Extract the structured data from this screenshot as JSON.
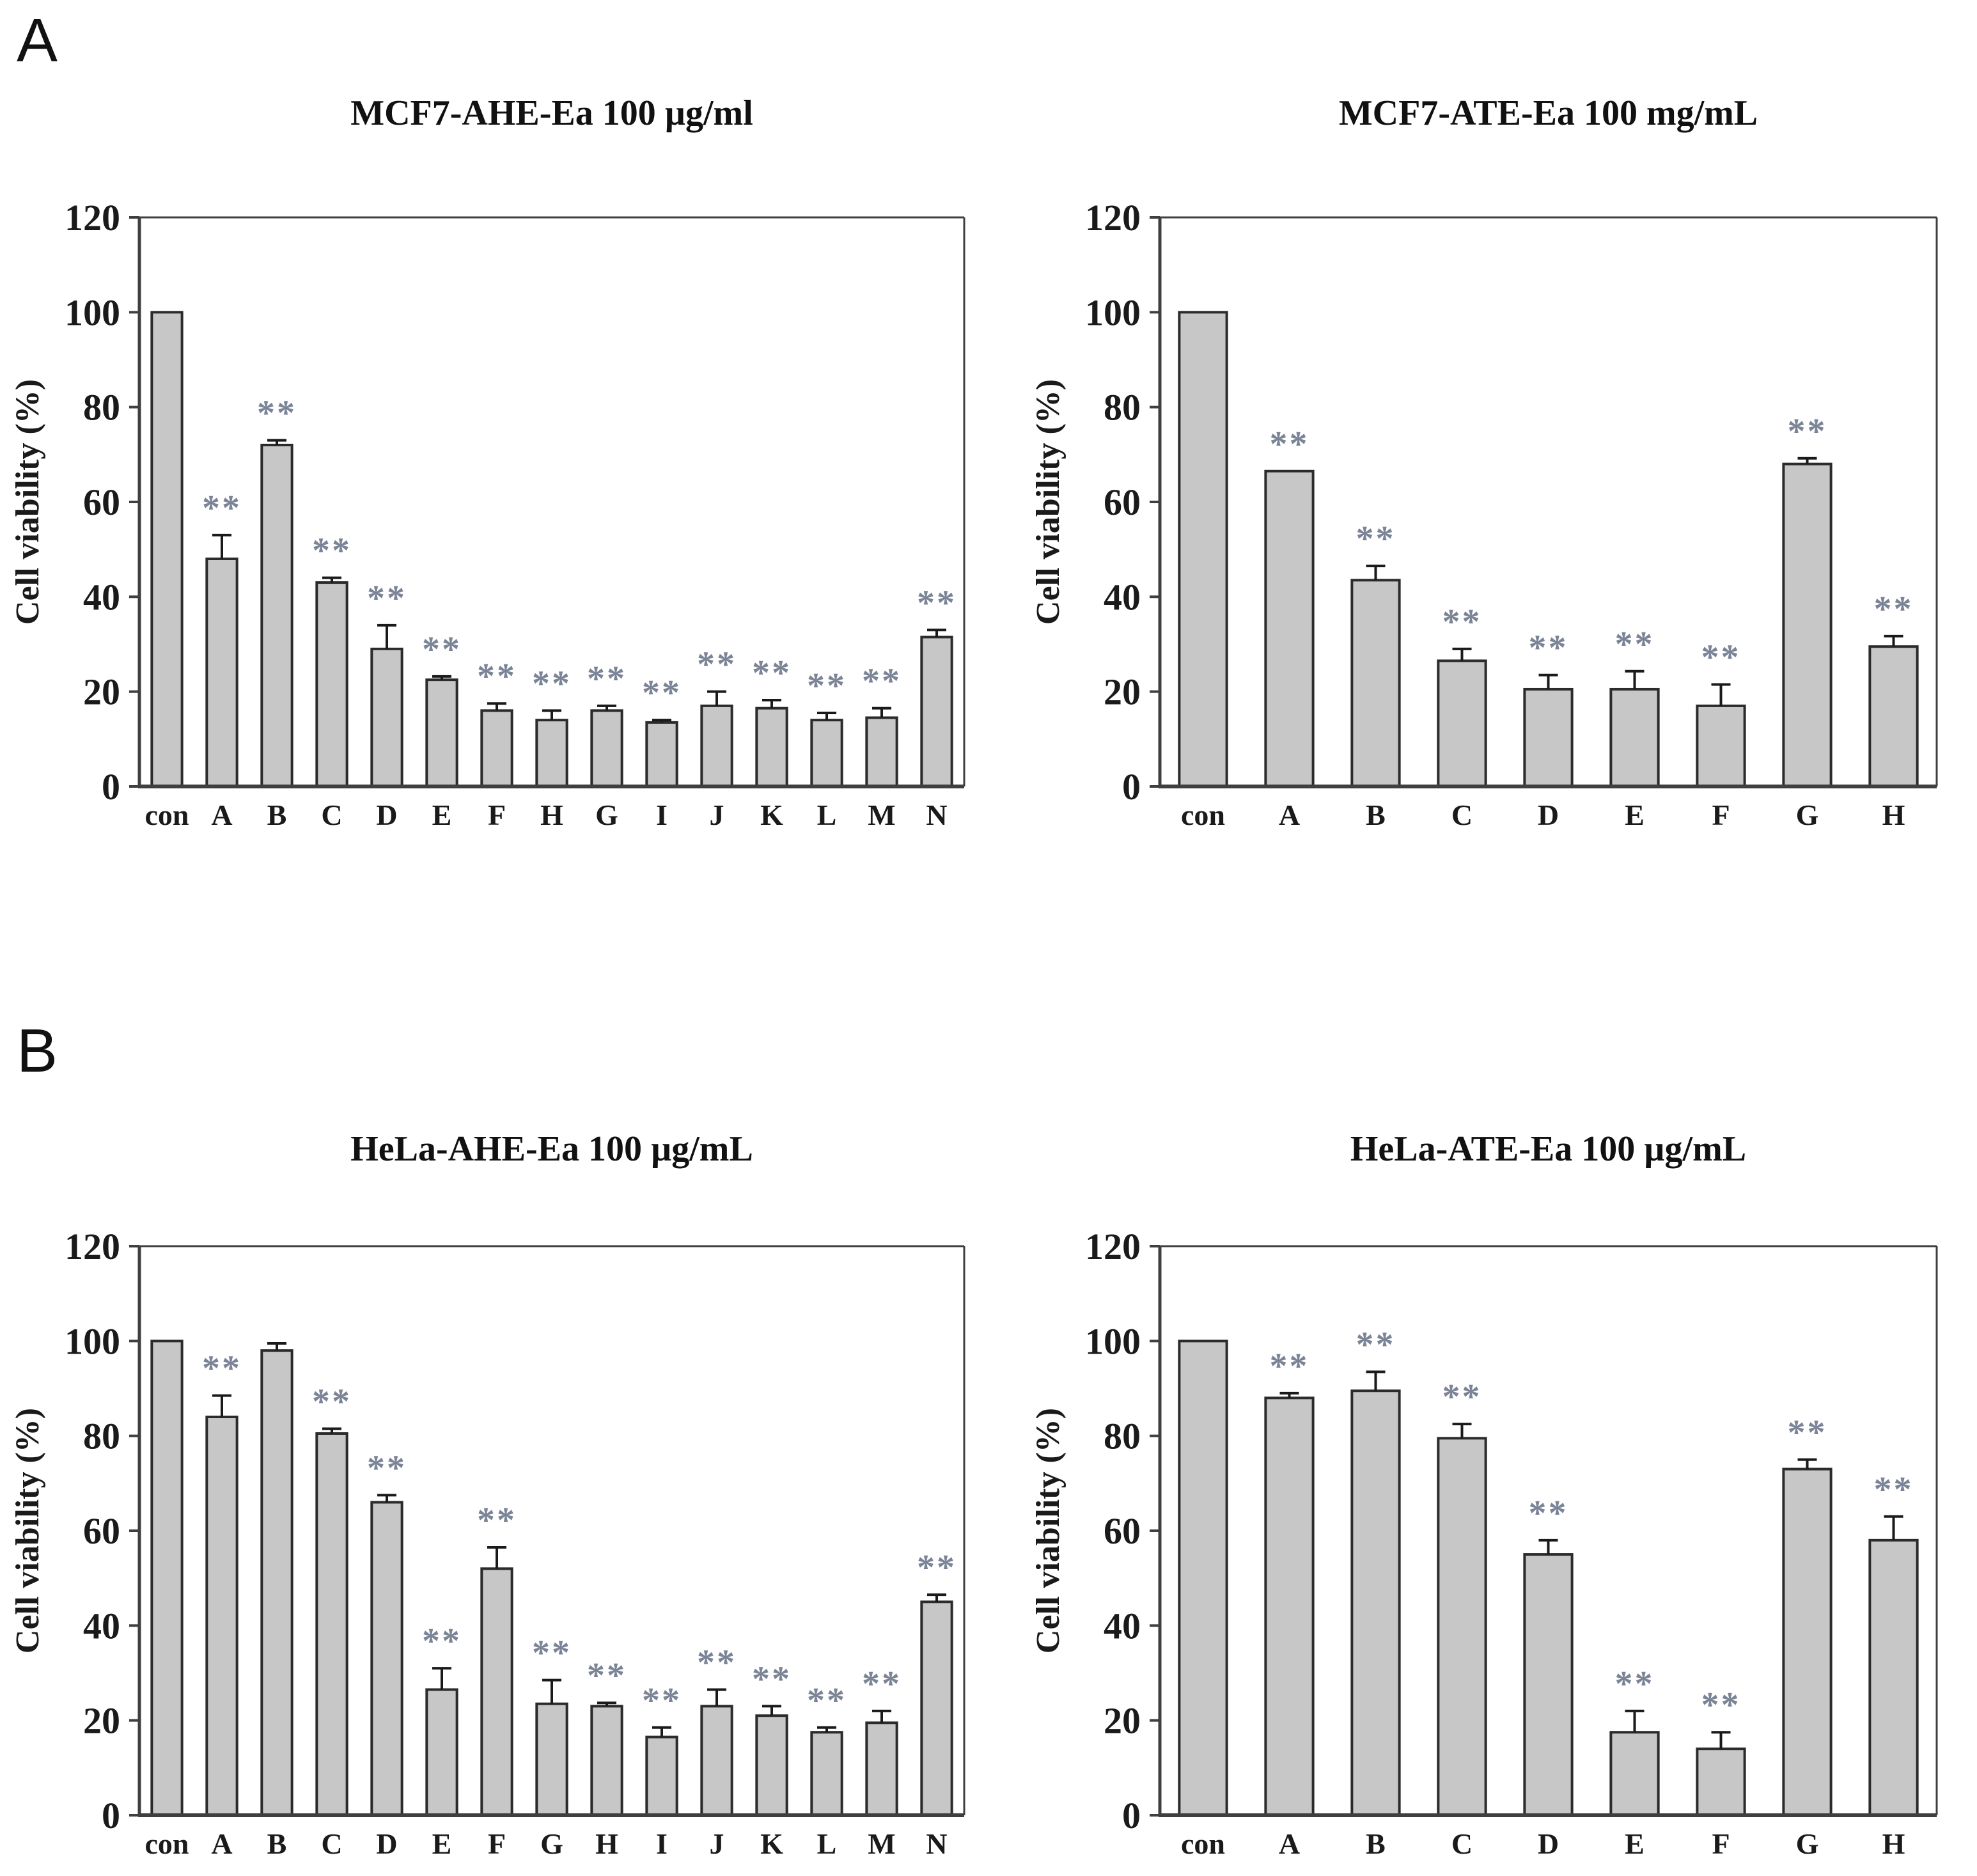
{
  "page": {
    "background": "#ffffff",
    "panels": [
      {
        "label": "A"
      },
      {
        "label": "B"
      }
    ]
  },
  "colors": {
    "bar_fill": "#c7c7c7",
    "bar_stroke": "#2b2b2b",
    "axis": "#3f3f3f",
    "error_bar": "#1a1a1a",
    "sig_marker": "#7b8496",
    "text": "#1a1a1a"
  },
  "chart_data": [
    {
      "id": "mcf7-ahe",
      "panel": "A",
      "type": "bar",
      "title": "MCF7-AHE-Ea 100 µg/ml",
      "xlabel": "",
      "ylabel": "Cell viability (%)",
      "ylim": [
        0,
        120
      ],
      "yticks": [
        0,
        20,
        40,
        60,
        80,
        100,
        120
      ],
      "grid": false,
      "legend": null,
      "sig_marker": "**",
      "categories": [
        "con",
        "A",
        "B",
        "C",
        "D",
        "E",
        "F",
        "H",
        "G",
        "I",
        "J",
        "K",
        "L",
        "M",
        "N"
      ],
      "values": [
        100,
        48,
        72,
        43,
        29,
        22.5,
        16,
        14,
        16,
        13.5,
        17,
        16.5,
        14,
        14.5,
        31.5
      ],
      "errors": [
        0,
        5,
        1,
        1,
        5,
        0.7,
        1.5,
        2,
        1,
        0.5,
        3,
        1.7,
        1.5,
        2,
        1.5
      ],
      "sig": [
        false,
        true,
        true,
        true,
        true,
        true,
        true,
        true,
        true,
        true,
        true,
        true,
        true,
        true,
        true
      ]
    },
    {
      "id": "mcf7-ate",
      "panel": "A",
      "type": "bar",
      "title": "MCF7-ATE-Ea 100 mg/mL",
      "xlabel": "",
      "ylabel": "Cell viability (%)",
      "ylim": [
        0,
        120
      ],
      "yticks": [
        0,
        20,
        40,
        60,
        80,
        100,
        120
      ],
      "grid": false,
      "legend": null,
      "sig_marker": "**",
      "categories": [
        "con",
        "A",
        "B",
        "C",
        "D",
        "E",
        "F",
        "G",
        "H"
      ],
      "values": [
        100,
        66.5,
        43.5,
        26.5,
        20.5,
        20.5,
        17,
        68,
        29.5
      ],
      "errors": [
        0,
        0,
        3,
        2.5,
        3,
        3.8,
        4.5,
        1.2,
        2.2
      ],
      "sig": [
        false,
        true,
        true,
        true,
        true,
        true,
        true,
        true,
        true
      ]
    },
    {
      "id": "hela-ahe",
      "panel": "B",
      "type": "bar",
      "title": "HeLa-AHE-Ea 100 µg/mL",
      "xlabel": "",
      "ylabel": "Cell viability (%)",
      "ylim": [
        0,
        120
      ],
      "yticks": [
        0,
        20,
        40,
        60,
        80,
        100,
        120
      ],
      "grid": false,
      "legend": null,
      "sig_marker": "**",
      "categories": [
        "con",
        "A",
        "B",
        "C",
        "D",
        "E",
        "F",
        "G",
        "H",
        "I",
        "J",
        "K",
        "L",
        "M",
        "N"
      ],
      "values": [
        100,
        84,
        98,
        80.5,
        66,
        26.5,
        52,
        23.5,
        23,
        16.5,
        23,
        21,
        17.5,
        19.5,
        45
      ],
      "errors": [
        0,
        4.5,
        1.5,
        1,
        1.5,
        4.5,
        4.5,
        5,
        0.7,
        2,
        3.5,
        2,
        1,
        2.5,
        1.5
      ],
      "sig": [
        false,
        true,
        false,
        true,
        true,
        true,
        true,
        true,
        true,
        true,
        true,
        true,
        true,
        true,
        true
      ]
    },
    {
      "id": "hela-ate",
      "panel": "B",
      "type": "bar",
      "title": "HeLa-ATE-Ea 100 µg/mL",
      "xlabel": "",
      "ylabel": "Cell viability (%)",
      "ylim": [
        0,
        120
      ],
      "yticks": [
        0,
        20,
        40,
        60,
        80,
        100,
        120
      ],
      "grid": false,
      "legend": null,
      "sig_marker": "**",
      "categories": [
        "con",
        "A",
        "B",
        "C",
        "D",
        "E",
        "F",
        "G",
        "H"
      ],
      "values": [
        100,
        88,
        89.5,
        79.5,
        55,
        17.5,
        14,
        73,
        58
      ],
      "errors": [
        0,
        1,
        4,
        3,
        3,
        4.5,
        3.5,
        2,
        5
      ],
      "sig": [
        false,
        true,
        true,
        true,
        true,
        true,
        true,
        true,
        true
      ]
    }
  ]
}
